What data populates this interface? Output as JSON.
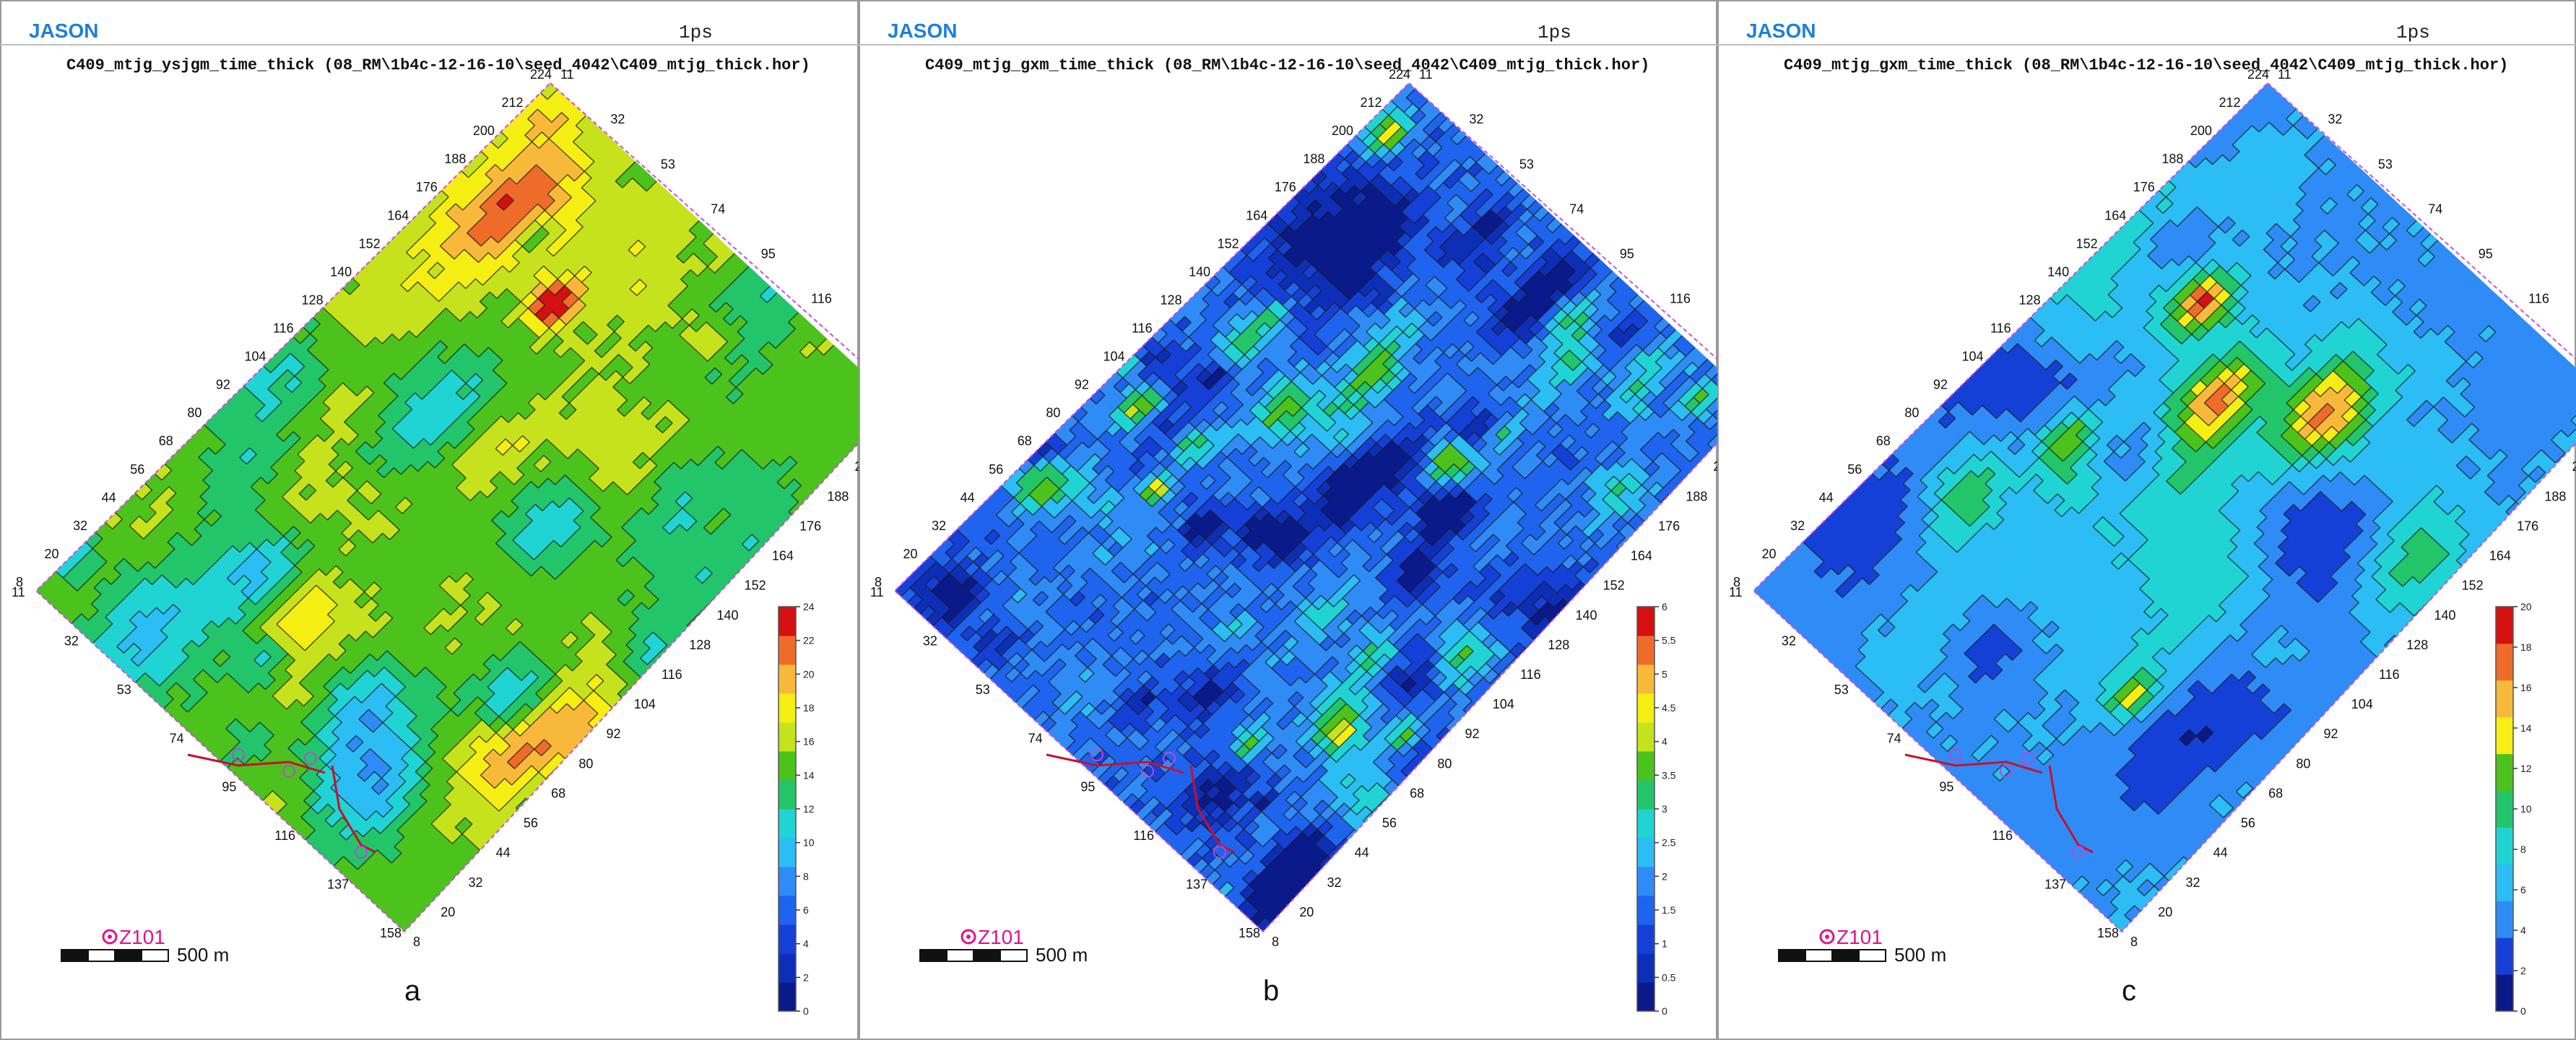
{
  "app_name": "JASON",
  "units": "1ps",
  "scale_label": "500 m",
  "well_label": "Z101",
  "panels": [
    {
      "letter": "a",
      "title": "C409_mtjg_ysjgm_time_thick (08_RM\\1b4c-12-16-10\\seed_4042\\C409_mtjg_thick.hor)",
      "colorbar_ticks": [
        "24",
        "22",
        "20",
        "18",
        "16",
        "14",
        "12",
        "10",
        "8",
        "6",
        "4",
        "2",
        "0"
      ]
    },
    {
      "letter": "b",
      "title": "C409_mtjg_gxm_time_thick (08_RM\\1b4c-12-16-10\\seed_4042\\C409_mtjg_thick.hor)",
      "colorbar_ticks": [
        "6",
        "5.5",
        "5",
        "4.5",
        "4",
        "3.5",
        "3",
        "2.5",
        "2",
        "1.5",
        "1",
        "0.5",
        "0"
      ]
    },
    {
      "letter": "c",
      "title": "C409_mtjg_gxm_time_thick (08_RM\\1b4c-12-16-10\\seed_4042\\C409_mtjg_thick.hor)",
      "colorbar_ticks": [
        "20",
        "18",
        "16",
        "14",
        "12",
        "10",
        "8",
        "6",
        "4",
        "2",
        "0"
      ]
    }
  ],
  "line_labels": [
    "11",
    "32",
    "53",
    "74",
    "95",
    "116",
    "137",
    "158"
  ],
  "trace_labels": [
    "8",
    "20",
    "32",
    "44",
    "56",
    "68",
    "80",
    "92",
    "104",
    "116",
    "128",
    "140",
    "152",
    "164",
    "176",
    "188",
    "200",
    "212",
    "224"
  ]
}
